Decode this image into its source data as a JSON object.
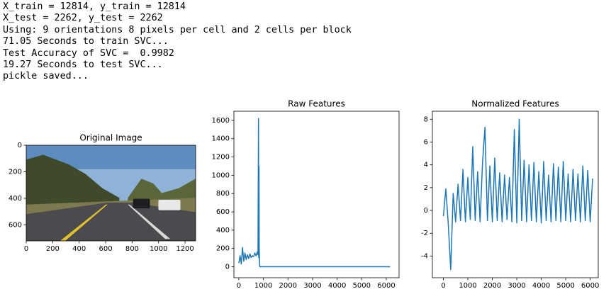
{
  "console": [
    "X_train = 12814, y_train = 12814",
    "X_test = 2262, y_test = 2262",
    "Using: 9 orientations 8 pixels per cell and 2 cells per block",
    "71.05 Seconds to train SVC...",
    "Test Accuracy of SVC =  0.9982",
    "19.27 Seconds to test SVC...",
    "pickle saved..."
  ],
  "chart_data": [
    {
      "type": "image",
      "title": "Original Image",
      "xlim": [
        0,
        1280
      ],
      "ylim": [
        720,
        0
      ],
      "xticks": [
        0,
        200,
        400,
        600,
        800,
        1000,
        1200
      ],
      "yticks": [
        0,
        200,
        400,
        600
      ]
    },
    {
      "type": "line",
      "title": "Raw Features",
      "xlim": [
        -200,
        6520
      ],
      "ylim": [
        -120,
        1700
      ],
      "xticks": [
        0,
        1000,
        2000,
        3000,
        4000,
        5000,
        6000
      ],
      "yticks": [
        0,
        200,
        400,
        600,
        800,
        1000,
        1200,
        1400,
        1600
      ],
      "series": [
        {
          "color": "#1f77b4",
          "x": [
            0,
            50,
            100,
            150,
            200,
            250,
            300,
            350,
            400,
            450,
            500,
            550,
            600,
            650,
            700,
            750,
            780,
            800,
            810,
            820,
            830,
            840,
            850,
            900,
            1000,
            2000,
            3000,
            4000,
            5000,
            6155
          ],
          "values": [
            40,
            120,
            30,
            210,
            60,
            150,
            80,
            130,
            90,
            140,
            100,
            120,
            110,
            150,
            120,
            160,
            130,
            1620,
            100,
            1100,
            200,
            80,
            0,
            0,
            0,
            0,
            0,
            0,
            0,
            0
          ]
        }
      ]
    },
    {
      "type": "line",
      "title": "Normalized Features",
      "xlim": [
        -450,
        6330
      ],
      "ylim": [
        -5.9,
        8.7
      ],
      "xticks": [
        0,
        1000,
        2000,
        3000,
        4000,
        5000,
        6000
      ],
      "yticks": [
        -4,
        -2,
        0,
        2,
        4,
        6,
        8
      ],
      "series": [
        {
          "color": "#1f77b4",
          "x": [
            0,
            100,
            200,
            300,
            400,
            500,
            600,
            700,
            800,
            900,
            1000,
            1100,
            1200,
            1300,
            1400,
            1500,
            1600,
            1700,
            1800,
            1900,
            2000,
            2100,
            2200,
            2300,
            2400,
            2500,
            2600,
            2700,
            2800,
            2900,
            3000,
            3100,
            3200,
            3300,
            3400,
            3500,
            3600,
            3700,
            3800,
            3900,
            4000,
            4100,
            4200,
            4300,
            4400,
            4500,
            4600,
            4700,
            4800,
            4900,
            5000,
            5100,
            5200,
            5300,
            5400,
            5500,
            5600,
            5700,
            5800,
            5900,
            6000,
            6100
          ],
          "values": [
            -0.5,
            1.9,
            -1.2,
            -5.2,
            1.5,
            -1.0,
            2.3,
            -0.9,
            3.6,
            -1.0,
            2.9,
            -0.8,
            5.6,
            -0.9,
            3.4,
            -1.0,
            4.2,
            7.3,
            -0.9,
            3.9,
            -1.0,
            4.6,
            -0.9,
            3.3,
            -1.0,
            3.1,
            -0.8,
            2.9,
            -1.0,
            7.1,
            -1.1,
            8.0,
            -0.9,
            4.4,
            -1.0,
            4.0,
            -0.9,
            4.2,
            -1.0,
            3.4,
            -1.1,
            4.3,
            -0.9,
            3.1,
            -1.0,
            4.1,
            -0.9,
            3.8,
            -1.0,
            4.3,
            -0.9,
            3.2,
            -1.0,
            3.6,
            -0.9,
            3.2,
            -1.0,
            3.9,
            -0.9,
            3.5,
            -1.0,
            2.8
          ]
        }
      ]
    }
  ]
}
